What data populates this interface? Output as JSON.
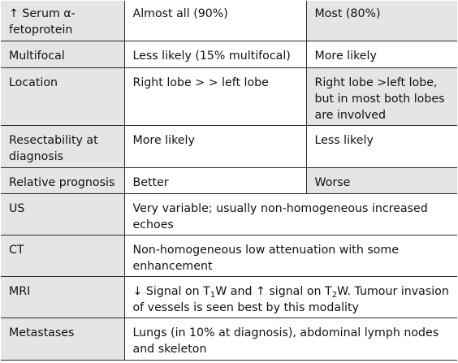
{
  "rows": [
    {
      "label": "↑ Serum α-fetoprotein",
      "a": "Almost all (90%)",
      "b": "Most (80%)"
    },
    {
      "label": "Multifocal",
      "a": "Less likely (15% multifocal)",
      "b": "More likely"
    },
    {
      "label": "Location",
      "a": "Right lobe > > left lobe",
      "b": "Right lobe >left lobe, but in most both lobes are involved"
    },
    {
      "label": "Resectability at diagnosis",
      "a": "More likely",
      "b": "Less likely"
    },
    {
      "label": "Relative prognosis",
      "a": "Better",
      "b": "Worse"
    }
  ],
  "merged_rows": [
    {
      "label": "US",
      "text": "Very variable; usually non-homogeneous increased echoes"
    },
    {
      "label": "CT",
      "text": "Non-homogeneous low attenuation with some enhancement"
    },
    {
      "label": "MRI",
      "text_parts": [
        "↓ Signal on T",
        "1",
        "W and ↑ signal on T",
        "2",
        "W. Tumour invasion of vessels is seen best by this modality"
      ]
    },
    {
      "label": "Metastases",
      "text": "Lungs (in 10% at diagnosis), abdominal lymph nodes and skeleton"
    }
  ]
}
